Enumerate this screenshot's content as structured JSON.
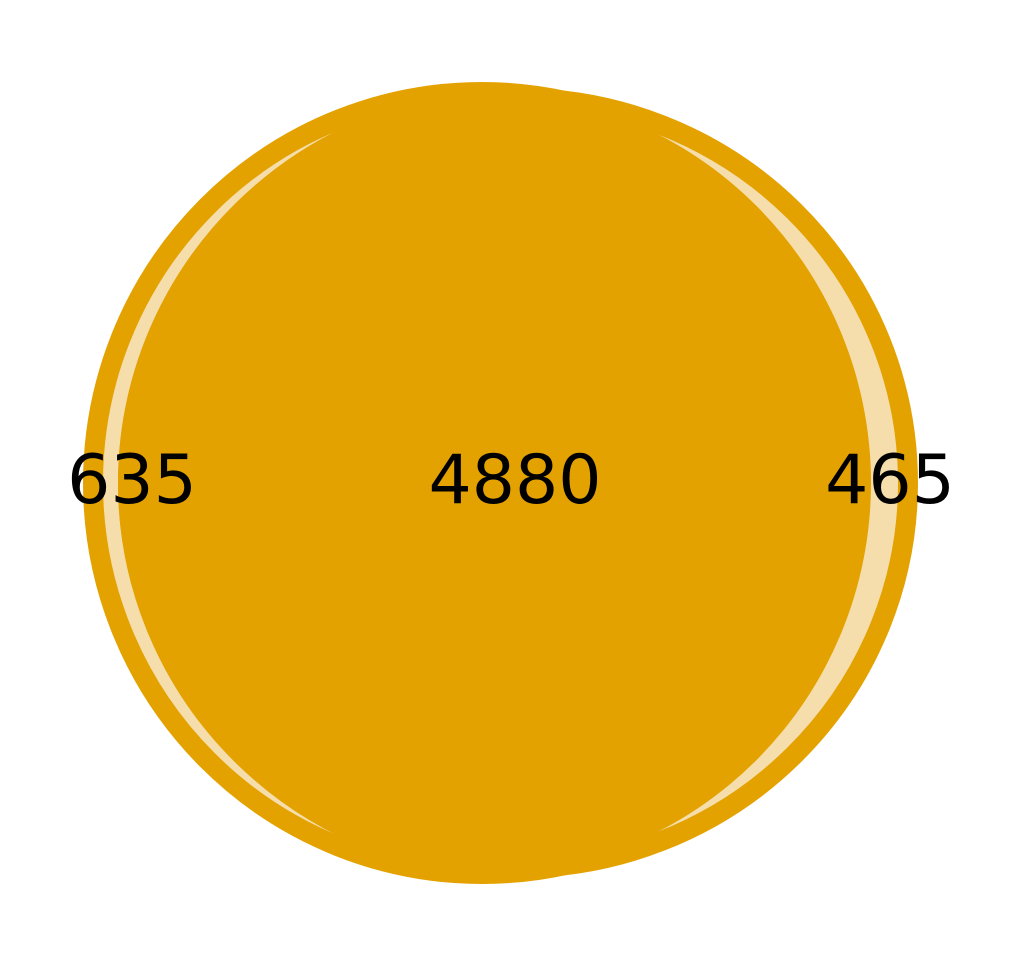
{
  "colors": {
    "background": "#ffffff",
    "circle_edge": "#e3a200",
    "overlap_fill": "#e3a200",
    "exclusive_fill": "#f5deab",
    "label": "#000000"
  },
  "venn": {
    "left_only": "635",
    "both": "4880",
    "right_only": "465"
  }
}
